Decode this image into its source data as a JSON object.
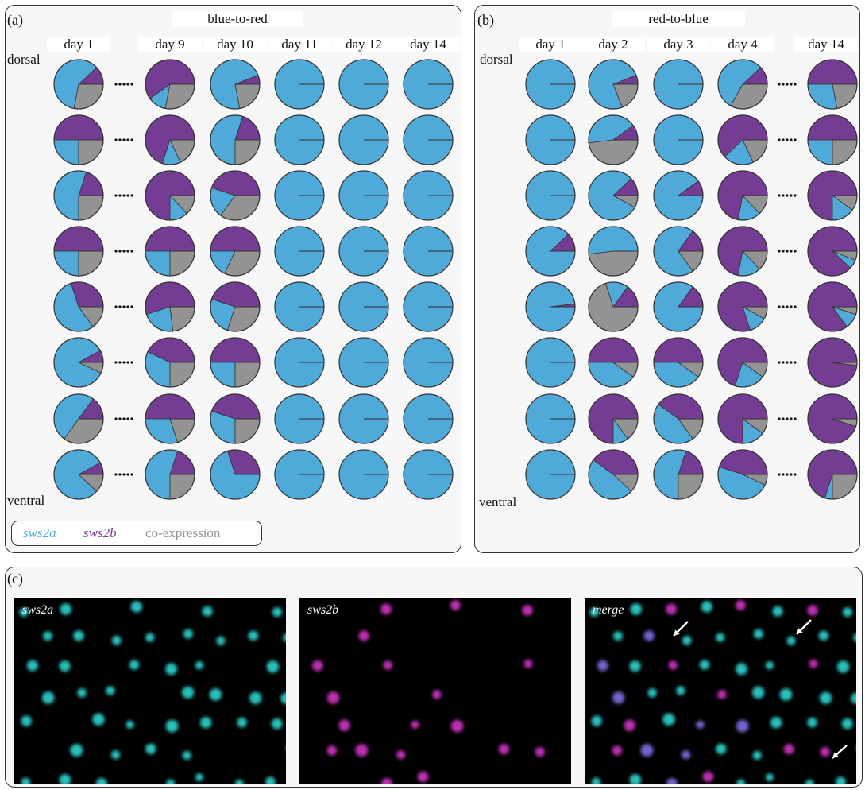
{
  "panels": {
    "a": {
      "label": "(a)",
      "title": "blue-to-red",
      "days": [
        "day 1",
        "day 9",
        "day 10",
        "day 11",
        "day 12",
        "day 14"
      ],
      "dorsal": "dorsal",
      "ventral": "ventral",
      "rows": [
        [
          [
            0.6,
            0.12,
            0.28
          ],
          [
            0.12,
            0.6,
            0.28
          ],
          [
            0.72,
            0.06,
            0.22
          ],
          [
            1,
            0,
            0
          ],
          [
            1,
            0,
            0
          ],
          [
            1,
            0,
            0
          ]
        ],
        [
          [
            0.25,
            0.5,
            0.25
          ],
          [
            0.12,
            0.7,
            0.18
          ],
          [
            0.55,
            0.2,
            0.25
          ],
          [
            1,
            0,
            0
          ],
          [
            1,
            0,
            0
          ],
          [
            1,
            0,
            0
          ]
        ],
        [
          [
            0.55,
            0.2,
            0.25
          ],
          [
            0.12,
            0.75,
            0.13
          ],
          [
            0.2,
            0.45,
            0.35
          ],
          [
            1,
            0,
            0
          ],
          [
            1,
            0,
            0
          ],
          [
            1,
            0,
            0
          ]
        ],
        [
          [
            0.25,
            0.5,
            0.25
          ],
          [
            0.25,
            0.5,
            0.25
          ],
          [
            0.18,
            0.5,
            0.32
          ],
          [
            1,
            0,
            0
          ],
          [
            1,
            0,
            0
          ],
          [
            1,
            0,
            0
          ]
        ],
        [
          [
            0.55,
            0.3,
            0.15
          ],
          [
            0.22,
            0.55,
            0.23
          ],
          [
            0.25,
            0.45,
            0.3
          ],
          [
            1,
            0,
            0
          ],
          [
            1,
            0,
            0
          ],
          [
            1,
            0,
            0
          ]
        ],
        [
          [
            0.85,
            0.08,
            0.07
          ],
          [
            0.32,
            0.43,
            0.25
          ],
          [
            0.25,
            0.5,
            0.25
          ],
          [
            1,
            0,
            0
          ],
          [
            1,
            0,
            0
          ],
          [
            1,
            0,
            0
          ]
        ],
        [
          [
            0.5,
            0.15,
            0.35
          ],
          [
            0.3,
            0.5,
            0.2
          ],
          [
            0.3,
            0.45,
            0.25
          ],
          [
            1,
            0,
            0
          ],
          [
            1,
            0,
            0
          ],
          [
            1,
            0,
            0
          ]
        ],
        [
          [
            0.8,
            0.08,
            0.12
          ],
          [
            0.55,
            0.2,
            0.25
          ],
          [
            0.7,
            0.3,
            0.0
          ],
          [
            1,
            0,
            0
          ],
          [
            1,
            0,
            0
          ],
          [
            1,
            0,
            0
          ]
        ]
      ]
    },
    "b": {
      "label": "(b)",
      "title": "red-to-blue",
      "days": [
        "day 1",
        "day 2",
        "day 3",
        "day 4",
        "day 14"
      ],
      "dorsal": "dorsal",
      "ventral": "ventral",
      "rows": [
        [
          [
            1,
            0,
            0
          ],
          [
            0.75,
            0.06,
            0.19
          ],
          [
            1,
            0,
            0
          ],
          [
            0.55,
            0.12,
            0.33
          ],
          [
            0.28,
            0.5,
            0.22
          ]
        ],
        [
          [
            1,
            0,
            0
          ],
          [
            0.42,
            0.1,
            0.48
          ],
          [
            1,
            0,
            0
          ],
          [
            0.2,
            0.62,
            0.18
          ],
          [
            0.25,
            0.5,
            0.25
          ]
        ],
        [
          [
            1,
            0,
            0
          ],
          [
            0.8,
            0.12,
            0.08
          ],
          [
            0.9,
            0.1,
            0.0
          ],
          [
            0.15,
            0.72,
            0.13
          ],
          [
            0.15,
            0.75,
            0.1
          ]
        ],
        [
          [
            0.88,
            0.12,
            0.0
          ],
          [
            0.52,
            0.0,
            0.48
          ],
          [
            0.7,
            0.15,
            0.15
          ],
          [
            0.15,
            0.72,
            0.13
          ],
          [
            0.06,
            0.88,
            0.06
          ]
        ],
        [
          [
            0.98,
            0.02,
            0.0
          ],
          [
            0.15,
            0.15,
            0.7
          ],
          [
            0.85,
            0.15,
            0.0
          ],
          [
            0.12,
            0.8,
            0.08
          ],
          [
            0.1,
            0.85,
            0.05
          ]
        ],
        [
          [
            1,
            0,
            0
          ],
          [
            0.4,
            0.5,
            0.1
          ],
          [
            0.4,
            0.5,
            0.1
          ],
          [
            0.2,
            0.7,
            0.1
          ],
          [
            0.0,
            0.98,
            0.02
          ]
        ],
        [
          [
            1,
            0,
            0
          ],
          [
            0.1,
            0.75,
            0.15
          ],
          [
            0.45,
            0.4,
            0.15
          ],
          [
            0.15,
            0.75,
            0.1
          ],
          [
            0.0,
            0.95,
            0.05
          ]
        ],
        [
          [
            1,
            0,
            0
          ],
          [
            0.48,
            0.4,
            0.12
          ],
          [
            0.55,
            0.2,
            0.25
          ],
          [
            0.48,
            0.45,
            0.07
          ],
          [
            0.05,
            0.7,
            0.25
          ]
        ]
      ]
    },
    "c": {
      "label": "(c)",
      "images": [
        {
          "label": "sws2a",
          "channel": "cyan"
        },
        {
          "label": "sws2b",
          "channel": "magenta"
        },
        {
          "label": "merge",
          "channel": "merge"
        }
      ]
    }
  },
  "legend": {
    "sws2a": "sws2a",
    "sws2b": "sws2b",
    "coexpression": "co-expression"
  },
  "colors": {
    "sws2a": "#4faad9",
    "sws2b": "#743c93",
    "coexpression": "#939393",
    "cyan_cell": "#2fd4d0",
    "magenta_cell": "#d036c4",
    "merge_violet": "#7d6fe0"
  }
}
